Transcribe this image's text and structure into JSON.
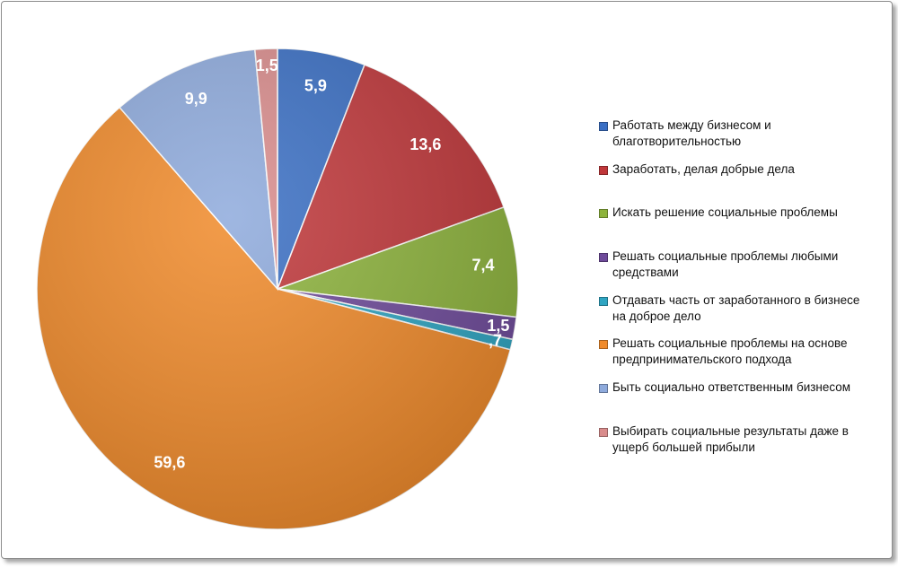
{
  "chart_data": {
    "type": "pie",
    "start": "12 o'clock",
    "direction": "clockwise",
    "legend_position": "right",
    "slices": [
      {
        "name": "Работать между бизнесом и благотворительностью",
        "value": 5.9,
        "label": "5,9",
        "color": "#3a6fc4"
      },
      {
        "name": "Заработать, делая добрые дела",
        "value": 13.6,
        "label": "13,6",
        "color": "#c0373a"
      },
      {
        "name": "Искать решение социальные проблемы",
        "value": 7.4,
        "label": "7,4",
        "color": "#8db33c"
      },
      {
        "name": "Решать социальные проблемы любыми средствами",
        "value": 1.5,
        "label": "1,5",
        "color": "#6e4a9a"
      },
      {
        "name": "Отдавать часть от заработанного в бизнесе на доброе дело",
        "value": 0.7,
        "label": ",7",
        "color": "#2fa5c2"
      },
      {
        "name": "Решать социальные проблемы на основе предпринимательского подхода",
        "value": 59.6,
        "label": "59,6",
        "color": "#f08a2a"
      },
      {
        "name": "Быть социально ответственным бизнесом",
        "value": 9.9,
        "label": "9,9",
        "color": "#8eaadc"
      },
      {
        "name": "Выбирать социальные результаты даже в ущерб большей прибыли",
        "value": 1.5,
        "label": "1,5",
        "color": "#d98c8c"
      }
    ]
  }
}
